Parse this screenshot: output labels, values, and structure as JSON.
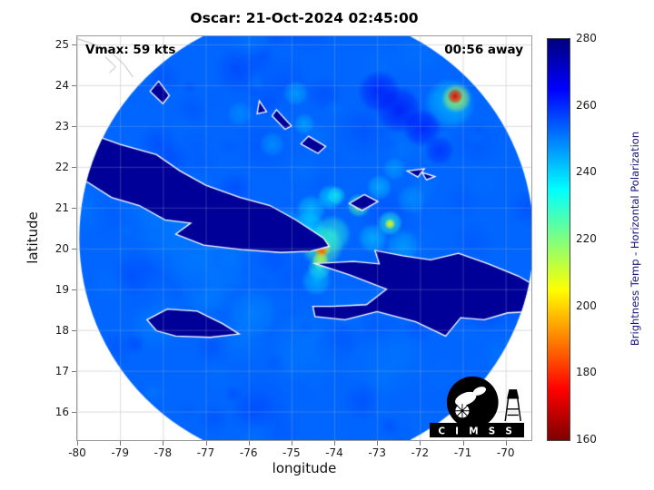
{
  "figure": {
    "title": "Oscar: 21-Oct-2024 02:45:00",
    "vmax_label": "Vmax: 59 kts",
    "time_label": "00:56 away",
    "xlabel": "longitude",
    "ylabel": "latitude",
    "logo_text": "C I M S S"
  },
  "colorbar": {
    "label": "Brightness Temp - Horizontal Polarization",
    "min": 160,
    "max": 280,
    "ticks": [
      160,
      180,
      200,
      220,
      240,
      260,
      280
    ]
  },
  "chart_data": {
    "type": "heatmap",
    "title": "Oscar: 21-Oct-2024 02:45:00",
    "xlabel": "longitude",
    "ylabel": "latitude",
    "x_range": [
      -80.0,
      -69.4
    ],
    "y_range": [
      15.3,
      25.2
    ],
    "x_ticks": [
      -80,
      -79,
      -78,
      -77,
      -76,
      -75,
      -74,
      -73,
      -72,
      -71,
      -70
    ],
    "y_ticks": [
      16,
      17,
      18,
      19,
      20,
      21,
      22,
      23,
      24,
      25
    ],
    "grid": true,
    "colormap": "reversed-jet",
    "value_label": "Brightness Temp - Horizontal Polarization (K)",
    "value_range": [
      160,
      280
    ],
    "storm": {
      "name": "Oscar",
      "vmax_kts": 59,
      "center": [
        -74.3,
        19.95
      ]
    },
    "swath": {
      "center": [
        -74.65,
        20.25
      ],
      "radius_deg": 5.3,
      "background_temp": 253
    },
    "land_temp": 277,
    "blobs": [
      [
        -74.28,
        20.05,
        0.5,
        226,
        0.75
      ],
      [
        -74.28,
        20.02,
        0.22,
        198,
        0.9
      ],
      [
        -74.3,
        19.93,
        0.13,
        186,
        0.95
      ],
      [
        -74.32,
        19.7,
        0.2,
        207,
        0.85
      ],
      [
        -74.35,
        19.5,
        0.28,
        230,
        0.7
      ],
      [
        -74.42,
        19.2,
        0.35,
        240,
        0.6
      ],
      [
        -74.05,
        20.35,
        0.45,
        230,
        0.7
      ],
      [
        -74.6,
        20.5,
        0.4,
        236,
        0.65
      ],
      [
        -74.85,
        20.3,
        0.35,
        238,
        0.6
      ],
      [
        -75.1,
        20.6,
        0.4,
        242,
        0.55
      ],
      [
        -74.55,
        20.95,
        0.35,
        238,
        0.6
      ],
      [
        -74.1,
        21.25,
        0.3,
        236,
        0.6
      ],
      [
        -73.95,
        21.3,
        0.22,
        233,
        0.6
      ],
      [
        -73.43,
        21.05,
        0.28,
        227,
        0.75
      ],
      [
        -73.45,
        21.02,
        0.1,
        212,
        0.85
      ],
      [
        -72.7,
        20.62,
        0.3,
        230,
        0.75
      ],
      [
        -72.7,
        20.6,
        0.12,
        204,
        0.9
      ],
      [
        -73.1,
        20.25,
        0.35,
        240,
        0.6
      ],
      [
        -72.4,
        20.05,
        0.4,
        243,
        0.55
      ],
      [
        -72.95,
        21.5,
        0.3,
        241,
        0.6
      ],
      [
        -72.6,
        21.95,
        0.28,
        244,
        0.55
      ],
      [
        -72.2,
        21.2,
        0.35,
        245,
        0.5
      ],
      [
        -71.3,
        23.55,
        0.6,
        238,
        0.6
      ],
      [
        -71.15,
        23.68,
        0.35,
        212,
        0.8
      ],
      [
        -71.18,
        23.73,
        0.18,
        172,
        0.95
      ],
      [
        -72.5,
        23.4,
        0.55,
        266,
        0.65
      ],
      [
        -71.95,
        22.95,
        0.45,
        265,
        0.6
      ],
      [
        -72.95,
        23.85,
        0.5,
        266,
        0.6
      ],
      [
        -71.55,
        22.4,
        0.35,
        263,
        0.55
      ],
      [
        -74.9,
        23.8,
        0.3,
        243,
        0.6
      ],
      [
        -74.7,
        23.05,
        0.25,
        242,
        0.55
      ],
      [
        -75.45,
        22.55,
        0.3,
        244,
        0.5
      ],
      [
        -76.2,
        23.3,
        0.3,
        246,
        0.5
      ],
      [
        -77.6,
        20.4,
        1.1,
        249,
        0.5
      ],
      [
        -78.4,
        21.3,
        0.9,
        250,
        0.45
      ],
      [
        -76.9,
        19.3,
        0.9,
        249,
        0.45
      ],
      [
        -75.9,
        18.4,
        0.6,
        247,
        0.45
      ],
      [
        -74.6,
        17.6,
        0.9,
        250,
        0.45
      ],
      [
        -72.6,
        17.2,
        0.8,
        251,
        0.4
      ]
    ],
    "coastlines": [
      {
        "name": "cuba",
        "points": [
          [
            -80.6,
            23.15
          ],
          [
            -79.8,
            22.85
          ],
          [
            -79.0,
            22.55
          ],
          [
            -78.15,
            22.3
          ],
          [
            -77.6,
            21.9
          ],
          [
            -77.0,
            21.55
          ],
          [
            -76.2,
            21.25
          ],
          [
            -75.5,
            21.05
          ],
          [
            -74.9,
            20.7
          ],
          [
            -74.25,
            20.25
          ],
          [
            -74.12,
            20.05
          ],
          [
            -74.55,
            19.93
          ],
          [
            -75.25,
            19.9
          ],
          [
            -76.15,
            19.97
          ],
          [
            -77.05,
            20.08
          ],
          [
            -77.7,
            20.35
          ],
          [
            -77.35,
            20.62
          ],
          [
            -77.95,
            20.7
          ],
          [
            -78.55,
            21.05
          ],
          [
            -79.2,
            21.25
          ],
          [
            -79.95,
            21.75
          ],
          [
            -80.6,
            22.35
          ]
        ]
      },
      {
        "name": "hispaniola",
        "points": [
          [
            -74.45,
            18.33
          ],
          [
            -73.75,
            18.25
          ],
          [
            -73.0,
            18.45
          ],
          [
            -72.1,
            18.2
          ],
          [
            -71.4,
            17.85
          ],
          [
            -71.05,
            18.3
          ],
          [
            -70.5,
            18.25
          ],
          [
            -69.95,
            18.42
          ],
          [
            -69.35,
            18.45
          ],
          [
            -69.25,
            19.05
          ],
          [
            -69.7,
            19.32
          ],
          [
            -70.4,
            19.62
          ],
          [
            -71.1,
            19.88
          ],
          [
            -71.75,
            19.72
          ],
          [
            -72.4,
            19.82
          ],
          [
            -73.05,
            19.95
          ],
          [
            -72.95,
            19.62
          ],
          [
            -73.55,
            19.68
          ],
          [
            -74.45,
            19.63
          ],
          [
            -73.65,
            19.35
          ],
          [
            -72.78,
            19.0
          ],
          [
            -73.25,
            18.62
          ],
          [
            -74.05,
            18.58
          ],
          [
            -74.5,
            18.58
          ]
        ]
      },
      {
        "name": "jamaica",
        "points": [
          [
            -78.37,
            18.25
          ],
          [
            -77.9,
            18.51
          ],
          [
            -77.2,
            18.46
          ],
          [
            -76.6,
            18.15
          ],
          [
            -76.22,
            17.9
          ],
          [
            -76.9,
            17.82
          ],
          [
            -77.7,
            17.85
          ],
          [
            -78.15,
            17.98
          ]
        ]
      },
      {
        "name": "great-inagua",
        "points": [
          [
            -73.65,
            21.1
          ],
          [
            -73.3,
            21.32
          ],
          [
            -72.98,
            21.15
          ],
          [
            -73.35,
            20.93
          ]
        ]
      },
      {
        "name": "turks",
        "points": [
          [
            -71.95,
            21.86
          ],
          [
            -71.65,
            21.76
          ],
          [
            -71.85,
            21.68
          ]
        ]
      },
      {
        "name": "caicos",
        "points": [
          [
            -72.3,
            21.9
          ],
          [
            -71.9,
            21.95
          ],
          [
            -72.05,
            21.75
          ]
        ]
      },
      {
        "name": "long-island",
        "points": [
          [
            -75.35,
            23.4
          ],
          [
            -75.0,
            23.0
          ],
          [
            -75.15,
            22.92
          ],
          [
            -75.45,
            23.25
          ]
        ]
      },
      {
        "name": "crooked-acklins",
        "points": [
          [
            -74.6,
            22.75
          ],
          [
            -74.2,
            22.5
          ],
          [
            -74.38,
            22.33
          ],
          [
            -74.78,
            22.56
          ]
        ]
      },
      {
        "name": "ragged",
        "points": [
          [
            -75.75,
            23.62
          ],
          [
            -75.58,
            23.35
          ],
          [
            -75.8,
            23.3
          ]
        ]
      },
      {
        "name": "andros",
        "points": [
          [
            -78.1,
            24.1
          ],
          [
            -77.85,
            23.75
          ],
          [
            -78.0,
            23.55
          ],
          [
            -78.3,
            23.85
          ]
        ]
      }
    ],
    "outer_coastlines": [
      [
        [
          -80.3,
          25.25
        ],
        [
          -79.6,
          25.0
        ],
        [
          -79.2,
          24.8
        ],
        [
          -78.9,
          24.5
        ],
        [
          -78.7,
          24.2
        ]
      ],
      [
        [
          -79.35,
          24.7
        ],
        [
          -79.1,
          24.45
        ],
        [
          -79.25,
          24.3
        ]
      ]
    ]
  }
}
